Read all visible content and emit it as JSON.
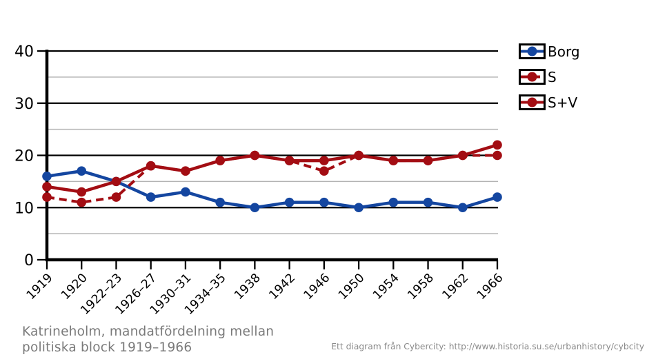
{
  "title": {
    "line1": "Katrineholm, mandatfördelning mellan",
    "line2": "politiska block 1919–1966"
  },
  "attribution": "Ett diagram från Cybercity: http://www.historia.su.se/urbanhistory/cybcity",
  "colors": {
    "major_grid": "#000000",
    "minor_grid": "#b3b3b3",
    "axis": "#000000",
    "title_text": "#7a7a7a",
    "attribution_text": "#8a8a8a",
    "borg_blue": "#1446a0",
    "socialist_red": "#a30d13"
  },
  "chart_data": {
    "type": "line",
    "title": "Katrineholm, mandatfördelning mellan politiska block 1919–1966",
    "xlabel": "",
    "ylabel": "",
    "categories": [
      "1919",
      "1920",
      "1922–23",
      "1926–27",
      "1930–31",
      "1934–35",
      "1938",
      "1942",
      "1946",
      "1950",
      "1954",
      "1958",
      "1962",
      "1966"
    ],
    "series": [
      {
        "name": "Borg",
        "color": "#1446a0",
        "style": "solid",
        "values": [
          16,
          17,
          15,
          12,
          13,
          11,
          10,
          11,
          11,
          10,
          11,
          11,
          10,
          12
        ]
      },
      {
        "name": "S",
        "color": "#a30d13",
        "style": "dashed",
        "values": [
          12,
          11,
          12,
          18,
          17,
          19,
          20,
          19,
          17,
          20,
          19,
          19,
          20,
          20
        ]
      },
      {
        "name": "S+V",
        "color": "#a30d13",
        "style": "solid",
        "values": [
          14,
          13,
          15,
          18,
          17,
          19,
          20,
          19,
          19,
          20,
          19,
          19,
          20,
          22
        ]
      }
    ],
    "ylim": [
      0,
      40
    ],
    "y_major_ticks": [
      0,
      10,
      20,
      30,
      40
    ],
    "y_minor_gridlines": [
      5,
      15,
      25,
      35
    ],
    "grid": true,
    "legend_position": "top-right"
  }
}
